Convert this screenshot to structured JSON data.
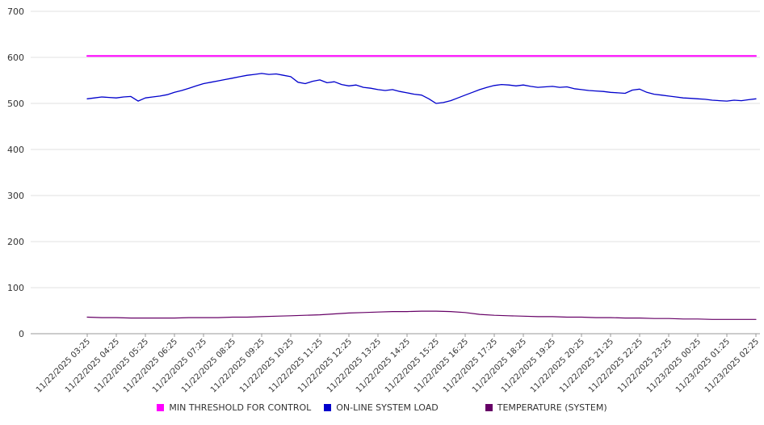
{
  "chart_data": {
    "type": "line",
    "title": "",
    "xlabel": "",
    "ylabel": "",
    "ylim": [
      0,
      700
    ],
    "yticks": [
      0,
      100,
      200,
      300,
      400,
      500,
      600,
      700
    ],
    "grid": true,
    "legend_position": "bottom",
    "x_hours": {
      "start": 0,
      "end": 23
    },
    "categories": [
      "11/22/2025 03:25",
      "11/22/2025 04:25",
      "11/22/2025 05:25",
      "11/22/2025 06:25",
      "11/22/2025 07:25",
      "11/22/2025 08:25",
      "11/22/2025 09:25",
      "11/22/2025 10:25",
      "11/22/2025 11:25",
      "11/22/2025 12:25",
      "11/22/2025 13:25",
      "11/22/2025 14:25",
      "11/22/2025 15:25",
      "11/22/2025 16:25",
      "11/22/2025 17:25",
      "11/22/2025 18:25",
      "11/22/2025 19:25",
      "11/22/2025 20:25",
      "11/22/2025 21:25",
      "11/22/2025 22:25",
      "11/22/2025 23:25",
      "11/23/2025 00:25",
      "11/23/2025 01:25",
      "11/23/2025 02:25"
    ],
    "series": [
      {
        "name": "MIN THRESHOLD FOR CONTROL",
        "color": "#ff00ff",
        "step_hours": 23,
        "values": [
          603,
          603
        ]
      },
      {
        "name": "ON-LINE SYSTEM LOAD",
        "color": "#0000cc",
        "step_hours": 0.25,
        "values": [
          510,
          512,
          514,
          513,
          512,
          514,
          515,
          505,
          512,
          514,
          516,
          519,
          524,
          528,
          533,
          538,
          543,
          546,
          549,
          552,
          555,
          558,
          561,
          563,
          565,
          563,
          564,
          561,
          558,
          546,
          543,
          548,
          551,
          545,
          547,
          541,
          538,
          540,
          535,
          533,
          530,
          528,
          530,
          526,
          523,
          520,
          518,
          510,
          500,
          502,
          506,
          512,
          518,
          524,
          530,
          535,
          539,
          541,
          540,
          538,
          540,
          537,
          535,
          536,
          537,
          535,
          536,
          532,
          530,
          528,
          527,
          526,
          524,
          523,
          522,
          529,
          531,
          524,
          520,
          518,
          516,
          514,
          512,
          511,
          510,
          509,
          507,
          506,
          505,
          507,
          506,
          508,
          510
        ]
      },
      {
        "name": "TEMPERATURE (SYSTEM)",
        "color": "#660066",
        "step_hours": 0.5,
        "values": [
          36,
          35,
          35,
          34,
          34,
          34,
          34,
          35,
          35,
          35,
          36,
          36,
          37,
          38,
          39,
          40,
          41,
          43,
          45,
          46,
          47,
          48,
          48,
          49,
          49,
          48,
          46,
          42,
          40,
          39,
          38,
          37,
          37,
          36,
          36,
          35,
          35,
          34,
          34,
          33,
          33,
          32,
          32,
          31,
          31,
          31,
          31
        ]
      }
    ],
    "axis": {
      "text_color": "#333333",
      "grid_color": "#e0e0e0",
      "axis_color": "#999999",
      "background": "#ffffff"
    }
  }
}
